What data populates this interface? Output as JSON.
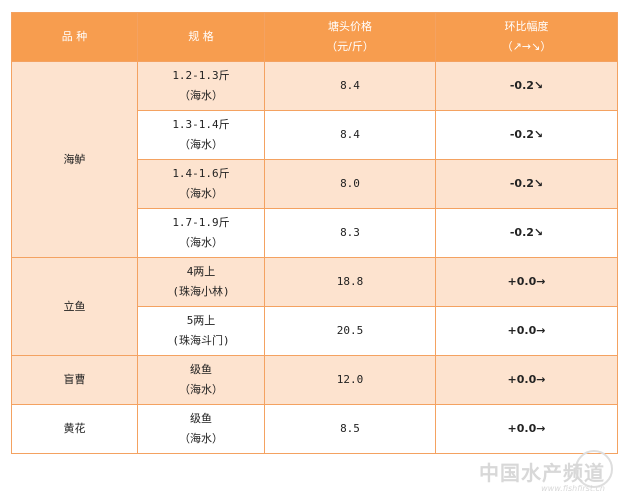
{
  "header": {
    "variety": "品 种",
    "spec": "规 格",
    "price_line1": "塘头价格",
    "price_line2": "（元/斤）",
    "change_line1": "环比幅度",
    "change_line2": "（↗→↘）"
  },
  "rows": [
    {
      "variety": "海鲈",
      "spec1": "1.2-1.3斤",
      "spec2": "（海水）",
      "price": "8.4",
      "change": "-0.2",
      "arrow": "↘"
    },
    {
      "spec1": "1.3-1.4斤",
      "spec2": "（海水）",
      "price": "8.4",
      "change": "-0.2",
      "arrow": "↘"
    },
    {
      "spec1": "1.4-1.6斤",
      "spec2": "（海水）",
      "price": "8.0",
      "change": "-0.2",
      "arrow": "↘"
    },
    {
      "spec1": "1.7-1.9斤",
      "spec2": "（海水）",
      "price": "8.3",
      "change": "-0.2",
      "arrow": "↘"
    },
    {
      "variety": "立鱼",
      "spec1": "4两上",
      "spec2": "(珠海小林)",
      "price": "18.8",
      "change": "+0.0",
      "arrow": "→"
    },
    {
      "spec1": "5两上",
      "spec2": "(珠海斗门)",
      "price": "20.5",
      "change": "+0.0",
      "arrow": "→"
    },
    {
      "variety": "盲曹",
      "spec1": "级鱼",
      "spec2": "（海水）",
      "price": "12.0",
      "change": "+0.0",
      "arrow": "→"
    },
    {
      "variety": "黄花",
      "spec1": "级鱼",
      "spec2": "（海水）",
      "price": "8.5",
      "change": "+0.0",
      "arrow": "→"
    }
  ],
  "watermark": {
    "title": "中国水产频道",
    "url": "www.fishfirst.cn"
  },
  "colors": {
    "header_bg": "#f79d4f",
    "shade_bg": "#fde3cf",
    "border": "#f4a261",
    "down": "#2aa02a"
  }
}
